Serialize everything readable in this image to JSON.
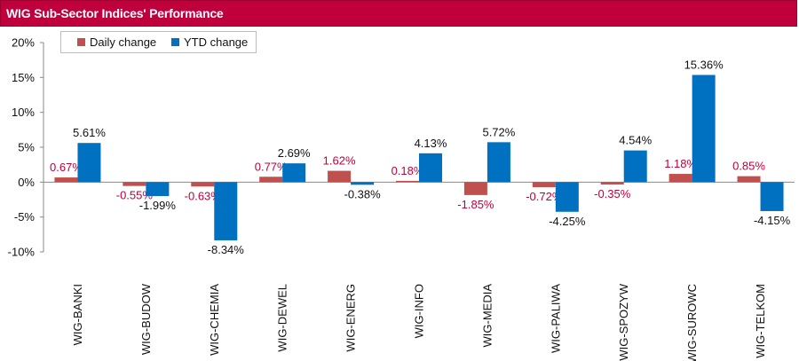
{
  "header": {
    "title": "WIG Sub-Sector Indices' Performance"
  },
  "colors": {
    "daily": "#c0504d",
    "ytd": "#0070c0",
    "daily_label": "#c0003c",
    "ytd_label": "#111111",
    "title_bar": "#c0003c"
  },
  "chart_data": {
    "type": "bar",
    "title": "WIG Sub-Sector Indices' Performance",
    "xlabel": "",
    "ylabel": "",
    "ylim": [
      -10,
      20
    ],
    "yticks": [
      -10,
      -5,
      0,
      5,
      10,
      15,
      20
    ],
    "ytick_labels": [
      "-10%",
      "-5%",
      "0%",
      "5%",
      "10%",
      "15%",
      "20%"
    ],
    "grid": false,
    "legend_position": "top-left",
    "categories": [
      "WIG-BANKI",
      "WIG-BUDOW",
      "WIG-CHEMIA",
      "WIG-DEWEL",
      "WIG-ENERG",
      "WIG-INFO",
      "WIG-MEDIA",
      "WIG-PALIWA",
      "WIG-SPOZYW",
      "WIG-SUROWC",
      "WIG-TELKOM"
    ],
    "series": [
      {
        "name": "Daily change",
        "values": [
          0.67,
          -0.55,
          -0.63,
          0.77,
          1.62,
          0.18,
          -1.85,
          -0.72,
          -0.35,
          1.18,
          0.85
        ],
        "labels": [
          "0.67%",
          "-0.55%",
          "-0.63%",
          "0.77%",
          "1.62%",
          "0.18%",
          "-1.85%",
          "-0.72%",
          "-0.35%",
          "1.18%",
          "0.85%"
        ]
      },
      {
        "name": "YTD change",
        "values": [
          5.61,
          -1.99,
          -8.34,
          2.69,
          -0.38,
          4.13,
          5.72,
          -4.25,
          4.54,
          15.36,
          -4.15
        ],
        "labels": [
          "5.61%",
          "-1.99%",
          "-8.34%",
          "2.69%",
          "-0.38%",
          "4.13%",
          "5.72%",
          "-4.25%",
          "4.54%",
          "15.36%",
          "-4.15%"
        ]
      }
    ]
  }
}
